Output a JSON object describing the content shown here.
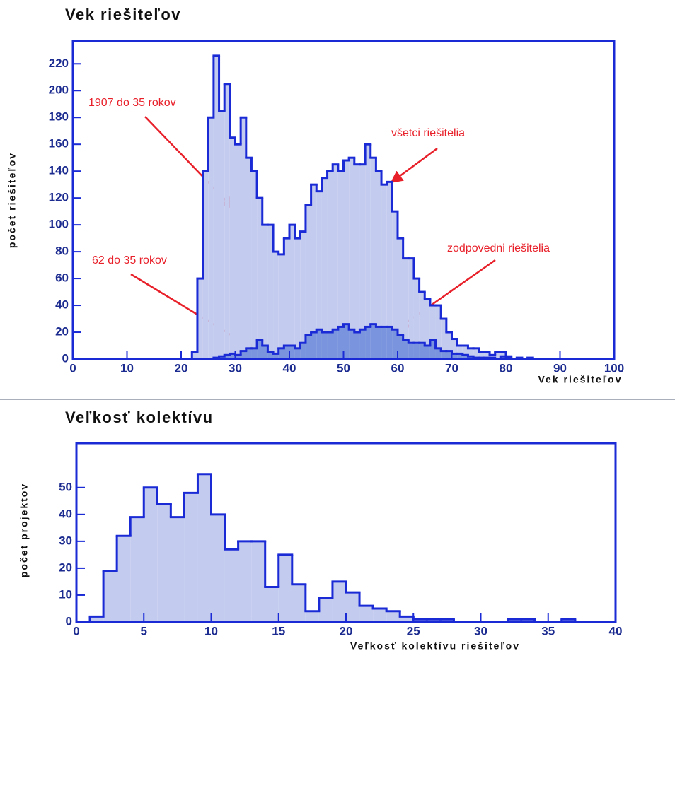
{
  "chart_data": [
    {
      "type": "histogram",
      "title": "Vek riešiteľov",
      "x_label": "Vek riešiteľov",
      "y_label": "počet riešiteľov",
      "bins": [
        0,
        1,
        2,
        3,
        4,
        5,
        6,
        7,
        8,
        9,
        10,
        11,
        12,
        13,
        14,
        15,
        16,
        17,
        18,
        19,
        20,
        21,
        22,
        23,
        24,
        25,
        26,
        27,
        28,
        29,
        30,
        31,
        32,
        33,
        34,
        35,
        36,
        37,
        38,
        39,
        40,
        41,
        42,
        43,
        44,
        45,
        46,
        47,
        48,
        49,
        50,
        51,
        52,
        53,
        54,
        55,
        56,
        57,
        58,
        59,
        60,
        61,
        62,
        63,
        64,
        65,
        66,
        67,
        68,
        69,
        70,
        71,
        72,
        73,
        74,
        75,
        76,
        77,
        78,
        79,
        80,
        81,
        82,
        83,
        84,
        85,
        86,
        87,
        88,
        89,
        90,
        91,
        92,
        93,
        94,
        95,
        96,
        97,
        98,
        99,
        100
      ],
      "series": [
        {
          "name": "všetci riešitelia",
          "color": "#1a2bd6",
          "fill": "#c3cbef",
          "values": [
            0,
            0,
            0,
            0,
            0,
            0,
            0,
            0,
            0,
            0,
            0,
            0,
            0,
            0,
            0,
            0,
            0,
            0,
            0,
            0,
            0,
            0,
            5,
            60,
            140,
            180,
            226,
            185,
            205,
            165,
            160,
            180,
            150,
            140,
            120,
            100,
            100,
            80,
            78,
            90,
            100,
            90,
            95,
            115,
            130,
            125,
            135,
            140,
            145,
            140,
            148,
            150,
            145,
            145,
            160,
            150,
            140,
            130,
            132,
            110,
            90,
            75,
            75,
            60,
            50,
            45,
            40,
            40,
            30,
            20,
            15,
            10,
            10,
            8,
            8,
            5,
            5,
            3,
            5,
            5,
            2,
            0,
            1,
            0,
            1,
            0,
            0,
            0,
            0,
            0,
            0,
            0,
            0,
            0,
            0,
            0,
            0,
            0,
            0,
            0
          ]
        },
        {
          "name": "zodpovedni riešitelia",
          "color": "#1a2bd6",
          "fill": "#7a95dd",
          "values": [
            0,
            0,
            0,
            0,
            0,
            0,
            0,
            0,
            0,
            0,
            0,
            0,
            0,
            0,
            0,
            0,
            0,
            0,
            0,
            0,
            0,
            0,
            0,
            0,
            0,
            0,
            1,
            2,
            3,
            4,
            3,
            6,
            8,
            8,
            14,
            10,
            5,
            4,
            8,
            10,
            10,
            8,
            12,
            18,
            20,
            22,
            20,
            20,
            22,
            24,
            26,
            22,
            20,
            22,
            24,
            26,
            24,
            24,
            24,
            22,
            18,
            14,
            12,
            12,
            12,
            10,
            14,
            8,
            6,
            6,
            4,
            4,
            3,
            2,
            1,
            1,
            1,
            1,
            0,
            2,
            1,
            0,
            0,
            0,
            0,
            0,
            0,
            0,
            0,
            0,
            0,
            0,
            0,
            0,
            0,
            0,
            0,
            0,
            0,
            0
          ]
        }
      ],
      "annotations": [
        "1907 do 35 rokov",
        "62 do 35 rokov"
      ],
      "xlim": [
        0,
        100
      ],
      "xticks": [
        0,
        10,
        20,
        30,
        40,
        50,
        60,
        70,
        80,
        90,
        100
      ],
      "ylim": [
        0,
        237
      ],
      "yticks": [
        0,
        20,
        40,
        60,
        80,
        100,
        120,
        140,
        160,
        180,
        200,
        220
      ]
    },
    {
      "type": "histogram",
      "title": "Veľkosť kolektívu",
      "x_label": "Veľkosť kolektívu riešiteľov",
      "y_label": "počet projektov",
      "bins": [
        0,
        1,
        2,
        3,
        4,
        5,
        6,
        7,
        8,
        9,
        10,
        11,
        12,
        13,
        14,
        15,
        16,
        17,
        18,
        19,
        20,
        21,
        22,
        23,
        24,
        25,
        26,
        27,
        28,
        29,
        30,
        31,
        32,
        33,
        34,
        35,
        36,
        37,
        38,
        39,
        40
      ],
      "values": [
        0,
        2,
        19,
        32,
        39,
        50,
        44,
        39,
        48,
        55,
        40,
        27,
        30,
        30,
        13,
        25,
        14,
        4,
        9,
        15,
        11,
        6,
        5,
        4,
        2,
        1,
        1,
        1,
        0,
        0,
        0,
        0,
        1,
        1,
        0,
        0,
        1,
        0,
        0,
        0
      ],
      "color": "#1a2bd6",
      "fill": "#c3cbef",
      "xlim": [
        0,
        40
      ],
      "xticks": [
        0,
        5,
        10,
        15,
        20,
        25,
        30,
        35,
        40
      ],
      "ylim": [
        0,
        66.5
      ],
      "yticks": [
        0,
        10,
        20,
        30,
        40,
        50
      ]
    }
  ]
}
